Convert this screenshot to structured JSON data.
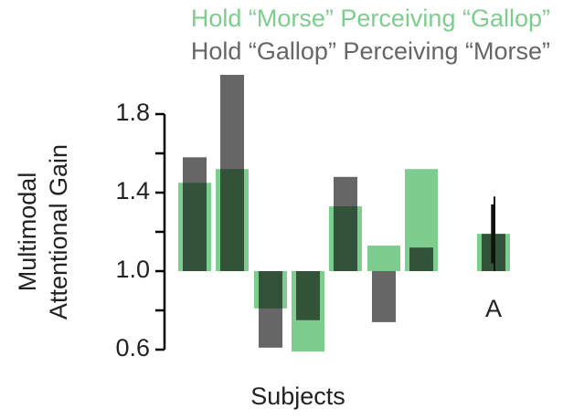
{
  "chart_data": {
    "type": "bar",
    "categories": [
      null,
      null,
      null,
      null,
      null,
      null,
      null,
      "A"
    ],
    "series": [
      {
        "name": "Hold “Morse” Perceiving “Gallop”",
        "color": "#7dcd8e",
        "values": [
          1.45,
          1.52,
          0.81,
          0.59,
          1.33,
          1.13,
          1.52,
          1.19
        ],
        "errors": [
          null,
          null,
          null,
          null,
          null,
          null,
          null,
          0.19
        ]
      },
      {
        "name": "Hold “Gallop” Perceiving “Morse”",
        "color": "#000000",
        "values": [
          1.58,
          2.0,
          0.61,
          0.75,
          1.48,
          0.74,
          1.12,
          1.19
        ],
        "errors": [
          null,
          null,
          null,
          null,
          null,
          null,
          null,
          0.15
        ]
      }
    ],
    "ylabel": [
      "Multimodal",
      "Attentional Gain"
    ],
    "xlabel": "Subjects",
    "ylim": [
      0.6,
      2.0
    ],
    "yticks": [
      {
        "value": 0.6,
        "label": "0.6"
      },
      {
        "value": 1.0,
        "label": "1.0"
      },
      {
        "value": 1.4,
        "label": "1.4"
      },
      {
        "value": 1.8,
        "label": "1.8"
      }
    ],
    "yminor_ticks": [
      0.8,
      1.2,
      1.6
    ],
    "baseline": 1.0
  }
}
